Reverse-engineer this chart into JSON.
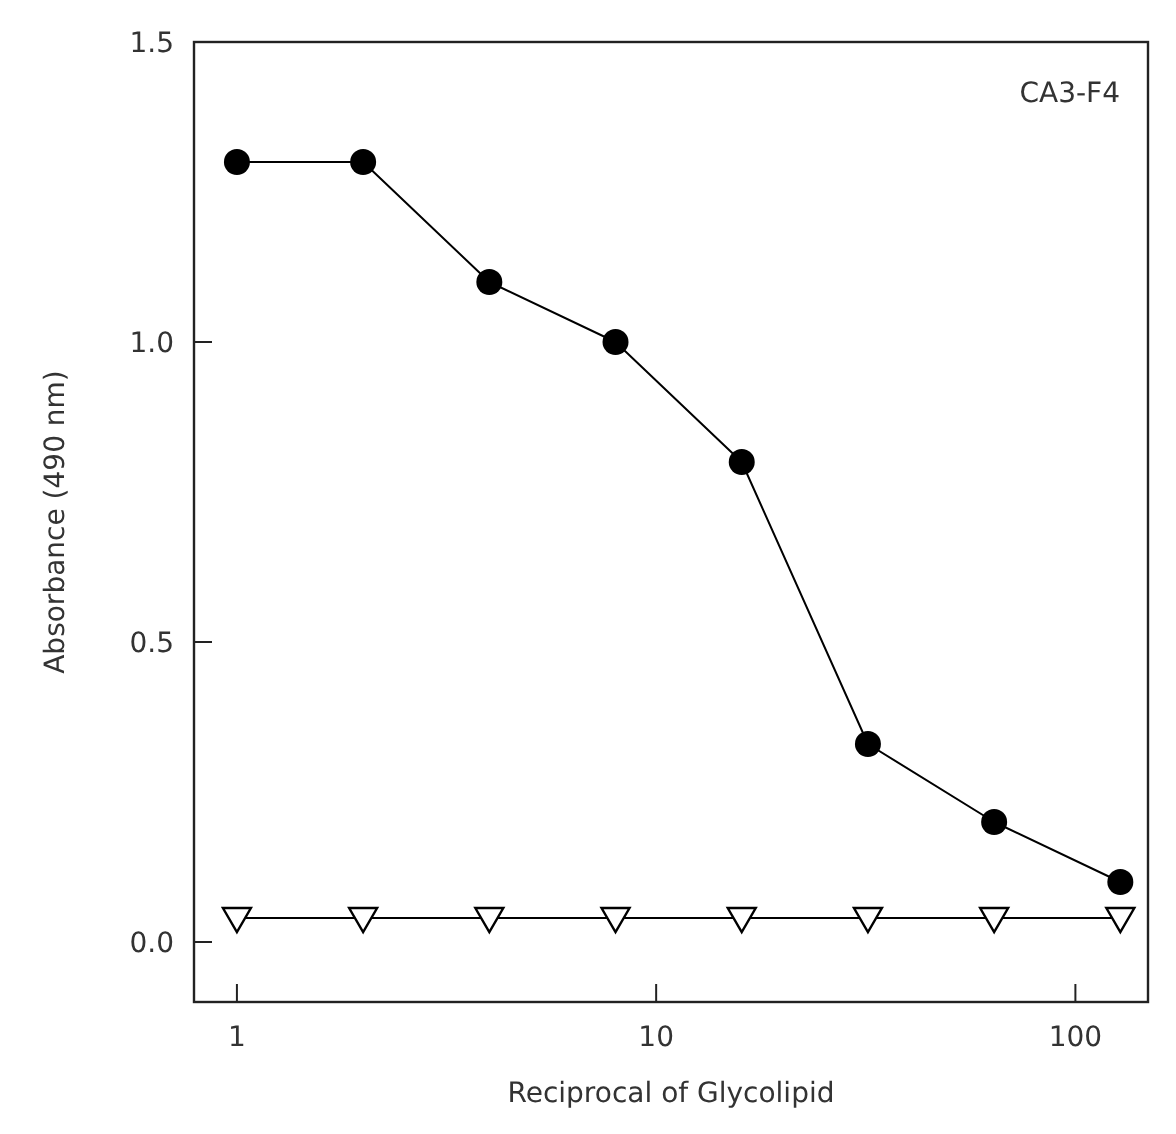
{
  "chart_data": {
    "type": "line",
    "xlabel": "Reciprocal of Glycolipid",
    "ylabel": "Absorbance (490 nm)",
    "annotations": [
      "CA3-F4"
    ],
    "log": "x",
    "xlim": [
      0.79,
      149
    ],
    "xticks": [
      1,
      10,
      100
    ],
    "ylim": [
      -0.1,
      1.5
    ],
    "yticks": [
      {
        "value": 0,
        "label": "0.0"
      },
      0.5,
      {
        "value": 1,
        "label": "1.0"
      },
      1.5
    ],
    "line_style": "solid",
    "series": [
      {
        "color": "#000000",
        "marker": "circle",
        "x": [
          1,
          2,
          4,
          8,
          16,
          32,
          64,
          128
        ],
        "values": [
          1.3,
          1.3,
          1.1,
          1.0,
          0.8,
          0.33,
          0.2,
          0.1
        ]
      },
      {
        "color": "#000000",
        "marker": "triangle",
        "x": [
          1,
          2,
          4,
          8,
          16,
          32,
          64,
          128
        ],
        "values": [
          0.04,
          0.04,
          0.04,
          0.04,
          0.04,
          0.04,
          0.04,
          0.04
        ]
      }
    ]
  }
}
